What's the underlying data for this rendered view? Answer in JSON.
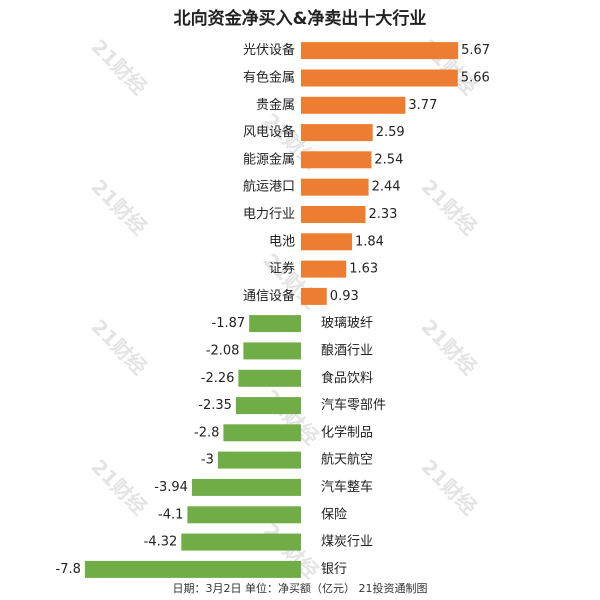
{
  "title": "北向资金净买入&净卖出十大行业",
  "footer": "日期：3月2日 单位：净买额（亿元） 21投资通制图",
  "watermark": "21财经",
  "colors": {
    "positive": "#ED7D31",
    "negative": "#70AD47",
    "text": "#222222"
  },
  "chart_data": {
    "type": "bar",
    "orientation": "horizontal",
    "title": "北向资金净买入&净卖出十大行业",
    "categories": [
      "光伏设备",
      "有色金属",
      "贵金属",
      "风电设备",
      "能源金属",
      "航运港口",
      "电力行业",
      "电池",
      "证券",
      "通信设备",
      "玻璃玻纤",
      "酿酒行业",
      "食品饮料",
      "汽车零部件",
      "化学制品",
      "航天航空",
      "汽车整车",
      "保险",
      "煤炭行业",
      "银行"
    ],
    "values": [
      5.67,
      5.66,
      3.77,
      2.59,
      2.54,
      2.44,
      2.33,
      1.84,
      1.63,
      0.93,
      -1.87,
      -2.08,
      -2.26,
      -2.35,
      -2.8,
      -3,
      -3.94,
      -4.1,
      -4.32,
      -7.8
    ],
    "value_labels": [
      "5.67",
      "5.66",
      "3.77",
      "2.59",
      "2.54",
      "2.44",
      "2.33",
      "1.84",
      "1.63",
      "0.93",
      "-1.87",
      "-2.08",
      "-2.26",
      "-2.35",
      "-2.8",
      "-3",
      "-3.94",
      "-4.1",
      "-4.32",
      "-7.8"
    ],
    "unit": "亿元",
    "xlim": [
      -8,
      6
    ],
    "grid": false,
    "legend": "none"
  }
}
